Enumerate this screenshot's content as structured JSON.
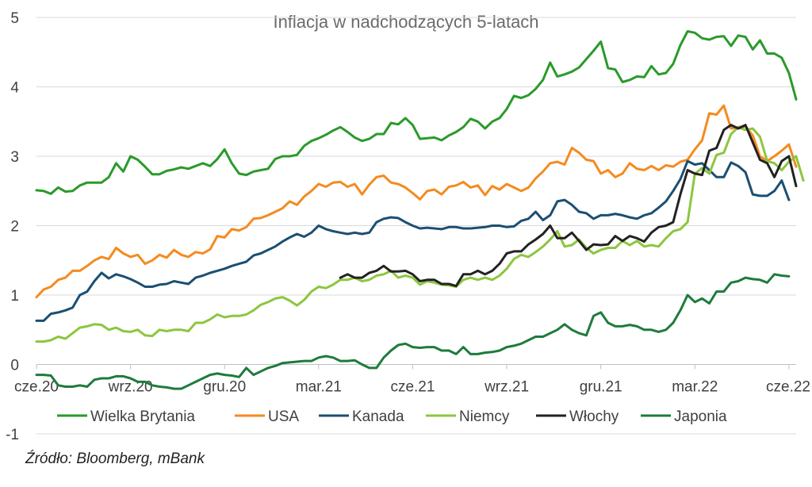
{
  "source": "Źródło: Bloomberg, mBank",
  "chart_data": {
    "type": "line",
    "title": "Inflacja w nadchodzących 5-latach",
    "xlabel": "",
    "ylabel": "",
    "ylim": [
      -1,
      5
    ],
    "yticks": [
      "5",
      "4",
      "3",
      "2",
      "1",
      "0",
      "-1"
    ],
    "ytick_values": [
      5,
      4,
      3,
      2,
      1,
      0,
      -1
    ],
    "xticks": [
      "cze.20",
      "wrz.20",
      "gru.20",
      "mar.21",
      "cze.21",
      "wrz.21",
      "gru.21",
      "mar.22",
      "cze.22"
    ],
    "xlim": [
      0,
      105
    ],
    "x_step_days": 7,
    "grid": "horizontal",
    "legend": "bottom",
    "series": [
      {
        "name": "Wielka Brytania",
        "color": "#2a9a2a",
        "start": 0,
        "values": [
          2.51,
          2.5,
          2.46,
          2.55,
          2.49,
          2.5,
          2.58,
          2.62,
          2.62,
          2.62,
          2.7,
          2.9,
          2.78,
          3.0,
          2.95,
          2.85,
          2.74,
          2.74,
          2.79,
          2.81,
          2.84,
          2.82,
          2.86,
          2.9,
          2.86,
          2.96,
          3.1,
          2.9,
          2.75,
          2.73,
          2.78,
          2.8,
          2.82,
          2.96,
          3.0,
          3.0,
          3.02,
          3.15,
          3.22,
          3.26,
          3.31,
          3.37,
          3.42,
          3.35,
          3.27,
          3.22,
          3.25,
          3.32,
          3.32,
          3.48,
          3.46,
          3.55,
          3.45,
          3.25,
          3.26,
          3.27,
          3.23,
          3.3,
          3.35,
          3.42,
          3.54,
          3.5,
          3.4,
          3.5,
          3.55,
          3.68,
          3.87,
          3.84,
          3.88,
          3.97,
          4.1,
          4.35,
          4.15,
          4.18,
          4.22,
          4.28,
          4.4,
          4.52,
          4.65,
          4.27,
          4.25,
          4.07,
          4.1,
          4.15,
          4.14,
          4.3,
          4.18,
          4.2,
          4.33,
          4.6,
          4.8,
          4.78,
          4.7,
          4.68,
          4.72,
          4.73,
          4.59,
          4.74,
          4.72,
          4.54,
          4.67,
          4.48,
          4.48,
          4.42,
          4.2,
          3.82
        ]
      },
      {
        "name": "USA",
        "color": "#f58a1f",
        "start": 0,
        "values": [
          0.97,
          1.08,
          1.12,
          1.22,
          1.25,
          1.35,
          1.35,
          1.42,
          1.5,
          1.55,
          1.52,
          1.68,
          1.6,
          1.55,
          1.58,
          1.45,
          1.5,
          1.58,
          1.54,
          1.65,
          1.58,
          1.55,
          1.62,
          1.6,
          1.66,
          1.85,
          1.83,
          1.95,
          1.93,
          1.98,
          2.1,
          2.11,
          2.15,
          2.2,
          2.25,
          2.35,
          2.3,
          2.42,
          2.5,
          2.6,
          2.56,
          2.62,
          2.63,
          2.56,
          2.6,
          2.45,
          2.59,
          2.7,
          2.72,
          2.62,
          2.6,
          2.55,
          2.47,
          2.38,
          2.5,
          2.52,
          2.45,
          2.56,
          2.58,
          2.63,
          2.55,
          2.58,
          2.44,
          2.57,
          2.52,
          2.6,
          2.55,
          2.5,
          2.55,
          2.68,
          2.78,
          2.9,
          2.92,
          2.88,
          3.12,
          3.05,
          2.95,
          2.93,
          2.75,
          2.8,
          2.7,
          2.75,
          2.9,
          2.82,
          2.8,
          2.86,
          2.8,
          2.87,
          2.85,
          2.92,
          2.95,
          3.1,
          3.23,
          3.62,
          3.6,
          3.73,
          3.4,
          3.42,
          3.43,
          3.3,
          3.0,
          2.93,
          3.0,
          3.08,
          3.17,
          2.85
        ]
      },
      {
        "name": "Kanada",
        "color": "#1b4f72",
        "start": 0,
        "values": [
          0.63,
          0.63,
          0.73,
          0.75,
          0.78,
          0.82,
          1.0,
          1.05,
          1.2,
          1.32,
          1.24,
          1.3,
          1.27,
          1.23,
          1.18,
          1.12,
          1.12,
          1.15,
          1.16,
          1.2,
          1.18,
          1.16,
          1.25,
          1.28,
          1.32,
          1.35,
          1.38,
          1.42,
          1.45,
          1.48,
          1.57,
          1.6,
          1.65,
          1.7,
          1.77,
          1.83,
          1.88,
          1.84,
          1.9,
          2.0,
          1.95,
          1.92,
          1.9,
          1.88,
          1.9,
          1.88,
          1.9,
          2.05,
          2.1,
          2.12,
          2.11,
          2.05,
          2.0,
          1.96,
          1.97,
          1.96,
          1.95,
          1.98,
          1.98,
          1.96,
          1.96,
          1.97,
          1.98,
          2.0,
          2.0,
          1.98,
          1.99,
          2.07,
          2.1,
          2.2,
          2.08,
          2.15,
          2.35,
          2.37,
          2.3,
          2.2,
          2.18,
          2.1,
          2.15,
          2.15,
          2.17,
          2.15,
          2.12,
          2.1,
          2.15,
          2.18,
          2.26,
          2.35,
          2.5,
          2.67,
          2.93,
          2.88,
          2.9,
          2.8,
          2.7,
          2.7,
          2.91,
          2.86,
          2.77,
          2.45,
          2.43,
          2.43,
          2.5,
          2.65,
          2.37
        ]
      },
      {
        "name": "Niemcy",
        "color": "#8cc63f",
        "start": 0,
        "values": [
          0.33,
          0.33,
          0.35,
          0.4,
          0.37,
          0.45,
          0.53,
          0.55,
          0.58,
          0.57,
          0.5,
          0.53,
          0.48,
          0.47,
          0.5,
          0.42,
          0.41,
          0.5,
          0.48,
          0.5,
          0.5,
          0.48,
          0.6,
          0.6,
          0.65,
          0.72,
          0.68,
          0.7,
          0.7,
          0.72,
          0.78,
          0.86,
          0.9,
          0.95,
          0.97,
          0.92,
          0.85,
          0.93,
          1.05,
          1.12,
          1.1,
          1.15,
          1.22,
          1.22,
          1.25,
          1.2,
          1.22,
          1.28,
          1.3,
          1.35,
          1.25,
          1.28,
          1.25,
          1.15,
          1.2,
          1.18,
          1.15,
          1.14,
          1.12,
          1.22,
          1.25,
          1.22,
          1.25,
          1.22,
          1.28,
          1.38,
          1.52,
          1.58,
          1.55,
          1.62,
          1.7,
          1.8,
          1.92,
          1.7,
          1.72,
          1.8,
          1.68,
          1.6,
          1.65,
          1.68,
          1.68,
          1.78,
          1.72,
          1.78,
          1.7,
          1.72,
          1.7,
          1.82,
          1.92,
          1.95,
          2.05,
          2.75,
          2.83,
          2.75,
          3.02,
          3.05,
          3.32,
          3.42,
          3.38,
          3.4,
          3.28,
          2.93,
          2.9,
          2.8,
          2.92,
          3.0,
          2.65
        ]
      },
      {
        "name": "Włochy",
        "color": "#222222",
        "start": 42,
        "values": [
          1.25,
          1.3,
          1.25,
          1.25,
          1.32,
          1.35,
          1.42,
          1.34,
          1.34,
          1.35,
          1.3,
          1.2,
          1.22,
          1.22,
          1.16,
          1.16,
          1.13,
          1.3,
          1.3,
          1.35,
          1.3,
          1.35,
          1.45,
          1.6,
          1.63,
          1.63,
          1.73,
          1.8,
          1.88,
          2.0,
          1.82,
          1.82,
          1.9,
          1.78,
          1.65,
          1.73,
          1.72,
          1.73,
          1.85,
          1.78,
          1.85,
          1.82,
          1.77,
          1.9,
          1.98,
          2.0,
          2.05,
          2.45,
          2.8,
          2.75,
          2.73,
          3.08,
          3.12,
          3.38,
          3.45,
          3.4,
          3.45,
          3.2,
          2.95,
          2.9,
          2.7,
          2.93,
          3.0,
          2.57
        ]
      },
      {
        "name": "Japonia",
        "color": "#1e7b3c",
        "start": 0,
        "values": [
          -0.15,
          -0.15,
          -0.16,
          -0.3,
          -0.32,
          -0.32,
          -0.3,
          -0.32,
          -0.22,
          -0.2,
          -0.2,
          -0.17,
          -0.17,
          -0.2,
          -0.25,
          -0.25,
          -0.3,
          -0.32,
          -0.33,
          -0.35,
          -0.35,
          -0.3,
          -0.25,
          -0.2,
          -0.15,
          -0.13,
          -0.15,
          -0.16,
          -0.18,
          -0.05,
          -0.15,
          -0.1,
          -0.05,
          -0.02,
          0.02,
          0.03,
          0.04,
          0.05,
          0.05,
          0.1,
          0.12,
          0.1,
          0.05,
          0.05,
          0.06,
          0.0,
          -0.05,
          -0.05,
          0.1,
          0.2,
          0.28,
          0.3,
          0.25,
          0.24,
          0.25,
          0.25,
          0.2,
          0.2,
          0.15,
          0.25,
          0.15,
          0.15,
          0.17,
          0.18,
          0.2,
          0.25,
          0.27,
          0.3,
          0.35,
          0.4,
          0.4,
          0.45,
          0.5,
          0.58,
          0.5,
          0.45,
          0.42,
          0.7,
          0.75,
          0.6,
          0.55,
          0.55,
          0.57,
          0.55,
          0.5,
          0.5,
          0.47,
          0.5,
          0.6,
          0.78,
          1.0,
          0.9,
          0.95,
          0.88,
          1.05,
          1.05,
          1.18,
          1.2,
          1.25,
          1.23,
          1.22,
          1.18,
          1.3,
          1.28,
          1.27
        ]
      }
    ]
  }
}
